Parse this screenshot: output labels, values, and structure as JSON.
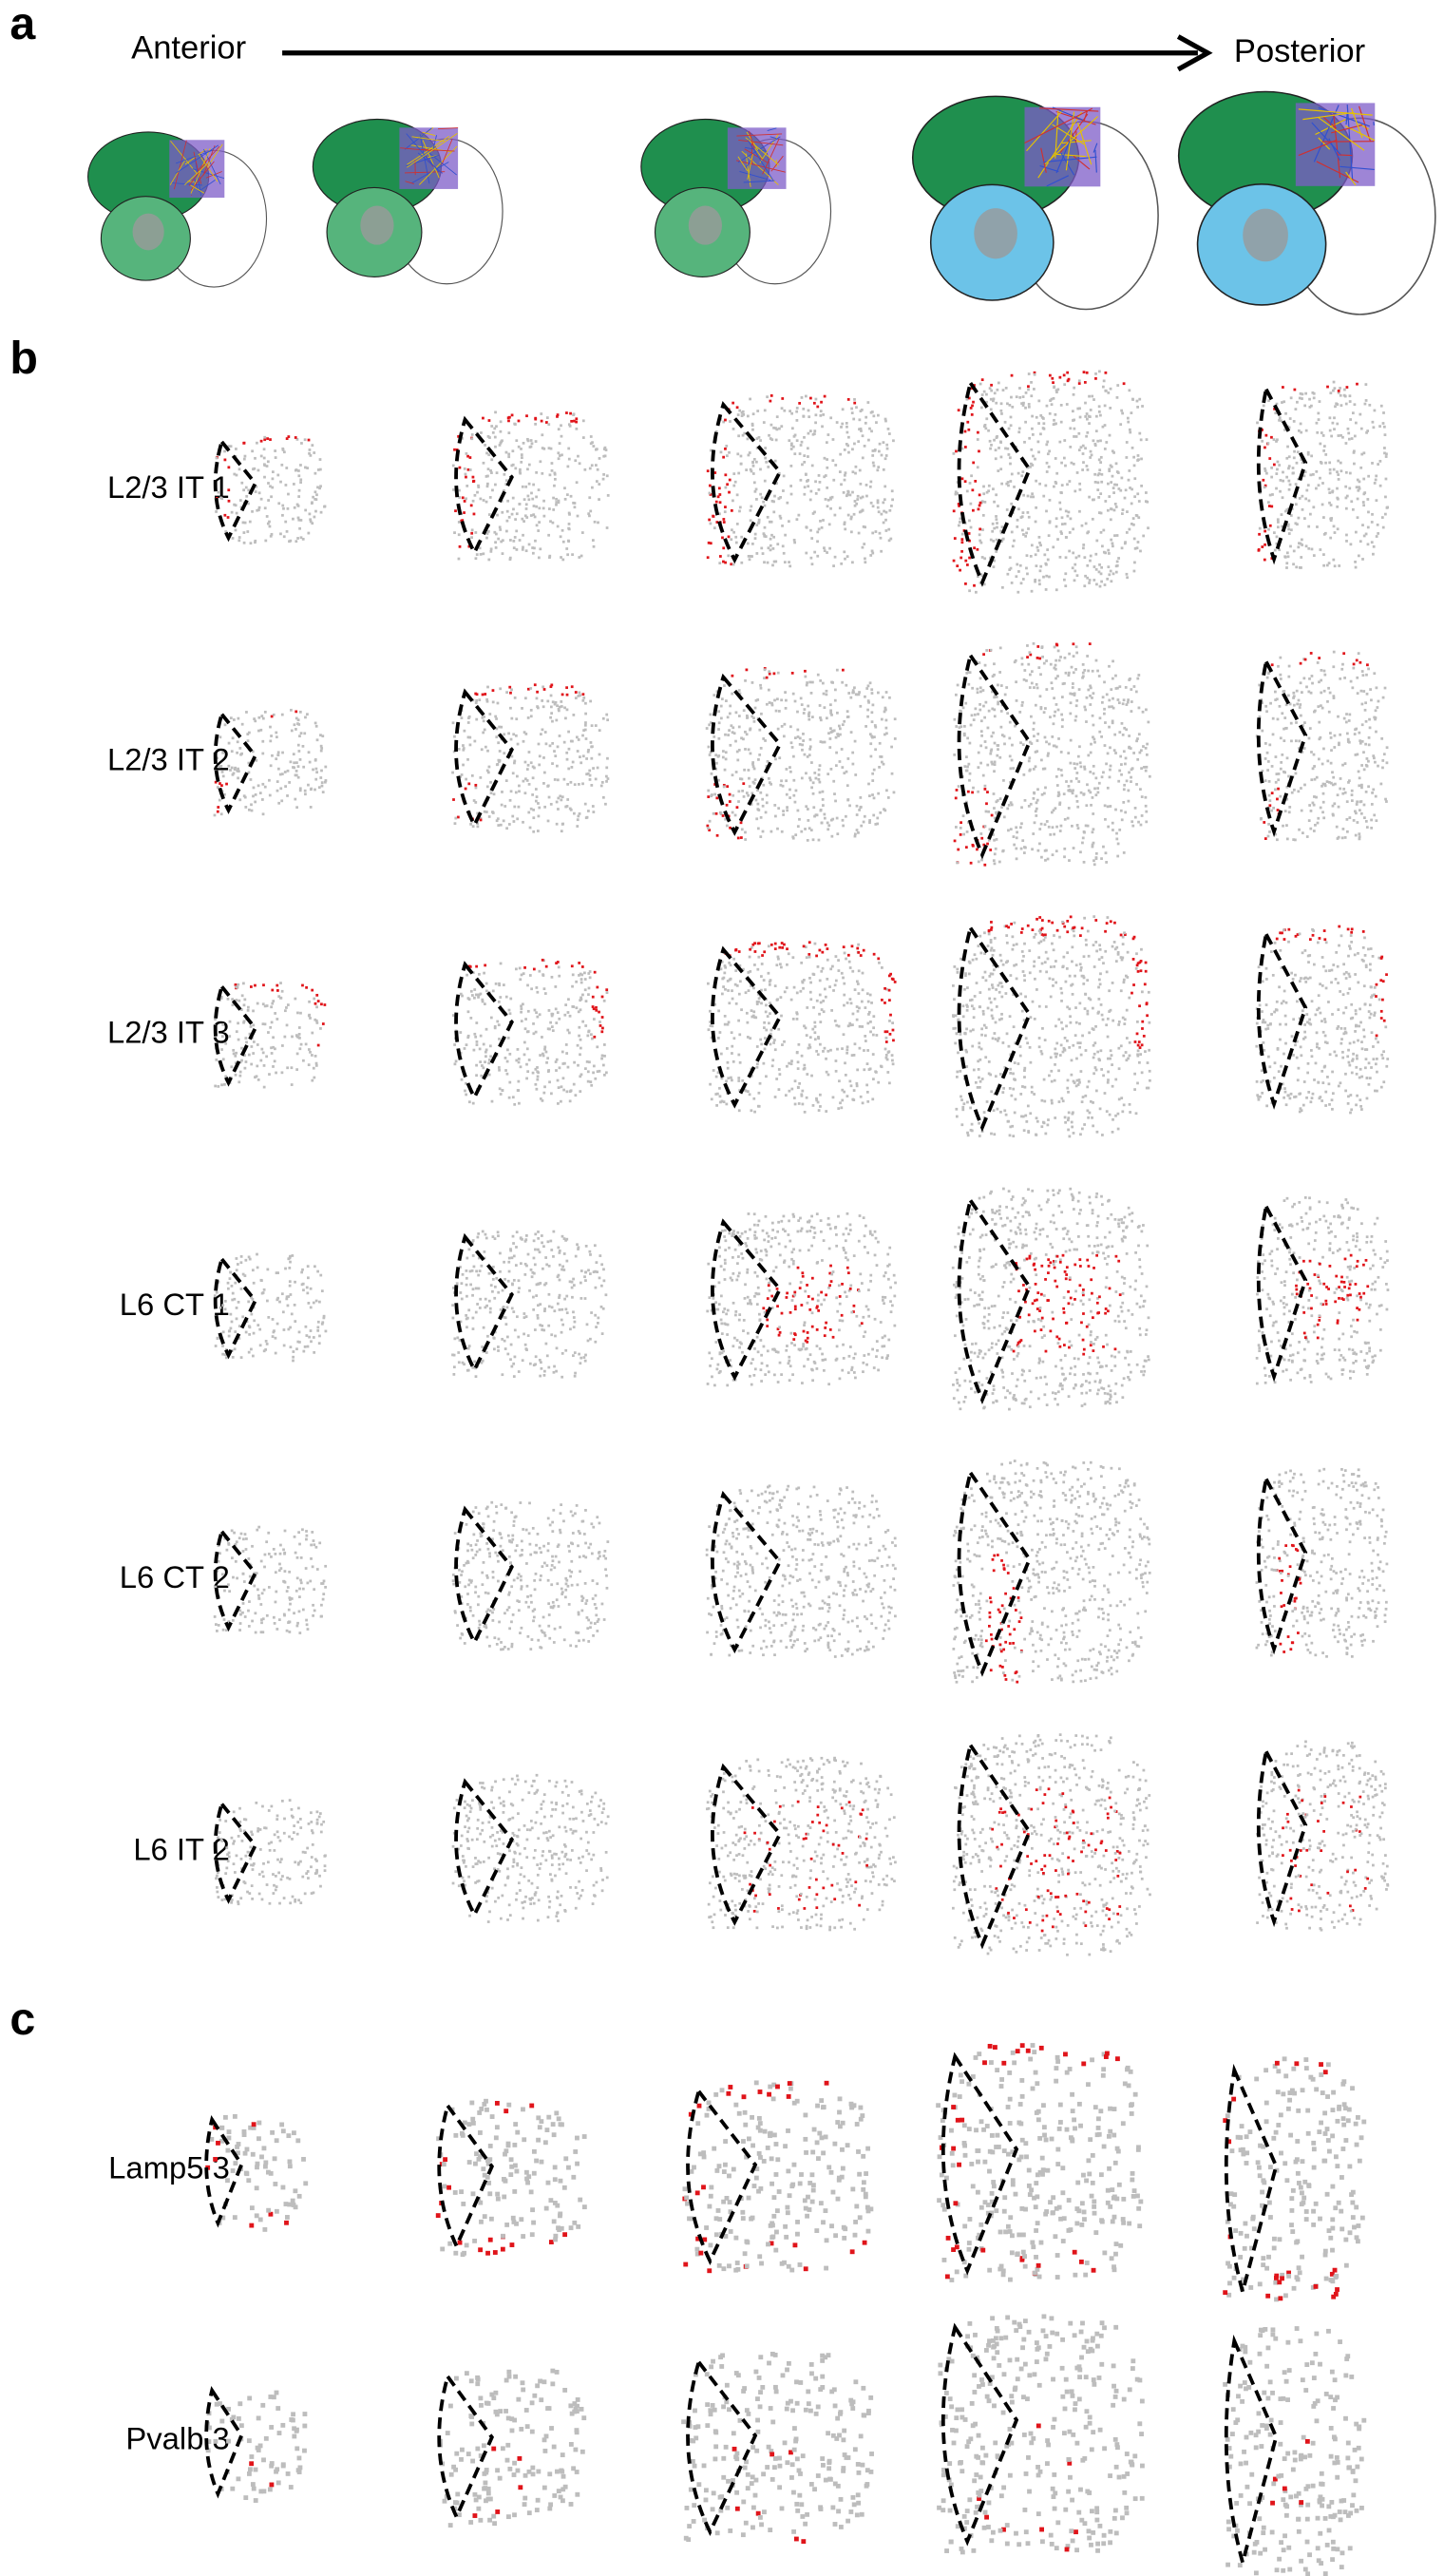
{
  "panels": [
    {
      "label": "a",
      "start_label": "Anterior",
      "end_label": "Posterior"
    },
    {
      "label": "b",
      "rows": [
        "L2/3 IT 1",
        "L2/3 IT 2",
        "L2/3 IT 3",
        "L6 CT 1",
        "L6 CT 2",
        "L6 IT 2"
      ]
    },
    {
      "label": "c",
      "rows": [
        "Lamp5 3",
        "Pvalb 3"
      ]
    }
  ]
}
